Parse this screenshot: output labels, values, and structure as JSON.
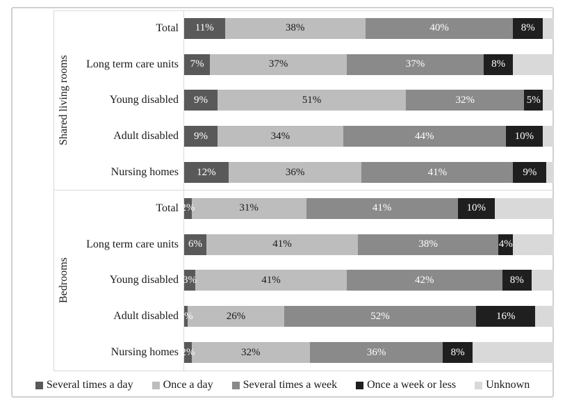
{
  "chart_data": {
    "type": "bar",
    "orientation": "horizontal-stacked",
    "value_suffix": "%",
    "xlim": [
      0,
      100
    ],
    "grid": "group-dividers-only",
    "legend_position": "bottom",
    "series": [
      {
        "name": "Several times a day",
        "color": "#595959",
        "label_color": "#ffffff"
      },
      {
        "name": "Once a day",
        "color": "#bdbdbd",
        "label_color": "#1a1a1a"
      },
      {
        "name": "Several times a week",
        "color": "#8a8a8a",
        "label_color": "#ffffff"
      },
      {
        "name": "Once a week or less",
        "color": "#1f1f1f",
        "label_color": "#ffffff"
      },
      {
        "name": "Unknown",
        "color": "#d9d9d9",
        "label_color": null
      }
    ],
    "groups": [
      {
        "label": "Shared living rooms",
        "rows": [
          {
            "label": "Total",
            "values": [
              11,
              38,
              40,
              8,
              3
            ],
            "shown_labels": [
              "11%",
              "38%",
              "40%",
              "8%",
              ""
            ]
          },
          {
            "label": "Long term care units",
            "values": [
              7,
              37,
              37,
              8,
              11
            ],
            "shown_labels": [
              "7%",
              "37%",
              "37%",
              "8%",
              ""
            ]
          },
          {
            "label": "Young disabled",
            "values": [
              9,
              51,
              32,
              5,
              3
            ],
            "shown_labels": [
              "9%",
              "51%",
              "32%",
              "5%",
              ""
            ]
          },
          {
            "label": "Adult disabled",
            "values": [
              9,
              34,
              44,
              10,
              3
            ],
            "shown_labels": [
              "9%",
              "34%",
              "44%",
              "10%",
              ""
            ]
          },
          {
            "label": "Nursing homes",
            "values": [
              12,
              36,
              41,
              9,
              2
            ],
            "shown_labels": [
              "12%",
              "36%",
              "41%",
              "9%",
              ""
            ]
          }
        ]
      },
      {
        "label": "Bedrooms",
        "rows": [
          {
            "label": "Total",
            "values": [
              2,
              31,
              41,
              10,
              16
            ],
            "shown_labels": [
              "2%",
              "31%",
              "41%",
              "10%",
              ""
            ]
          },
          {
            "label": "Long term care units",
            "values": [
              6,
              41,
              38,
              4,
              11
            ],
            "shown_labels": [
              "6%",
              "41%",
              "38%",
              "4%",
              ""
            ]
          },
          {
            "label": "Young disabled",
            "values": [
              3,
              41,
              42,
              8,
              6
            ],
            "shown_labels": [
              "3%",
              "41%",
              "42%",
              "8%",
              ""
            ]
          },
          {
            "label": "Adult disabled",
            "values": [
              1,
              26,
              52,
              16,
              5
            ],
            "shown_labels": [
              "1%",
              "26%",
              "52%",
              "16%",
              ""
            ]
          },
          {
            "label": "Nursing homes",
            "values": [
              2,
              32,
              36,
              8,
              22
            ],
            "shown_labels": [
              "2%",
              "32%",
              "36%",
              "8%",
              ""
            ]
          }
        ]
      }
    ],
    "note_unlabeled_series": "Unknown segments carry no data labels in the chart"
  },
  "colors": {
    "frame_border": "#ccd1d6",
    "gridline": "#d9d9d9",
    "text": "#1a1a1a",
    "background": "#ffffff"
  }
}
